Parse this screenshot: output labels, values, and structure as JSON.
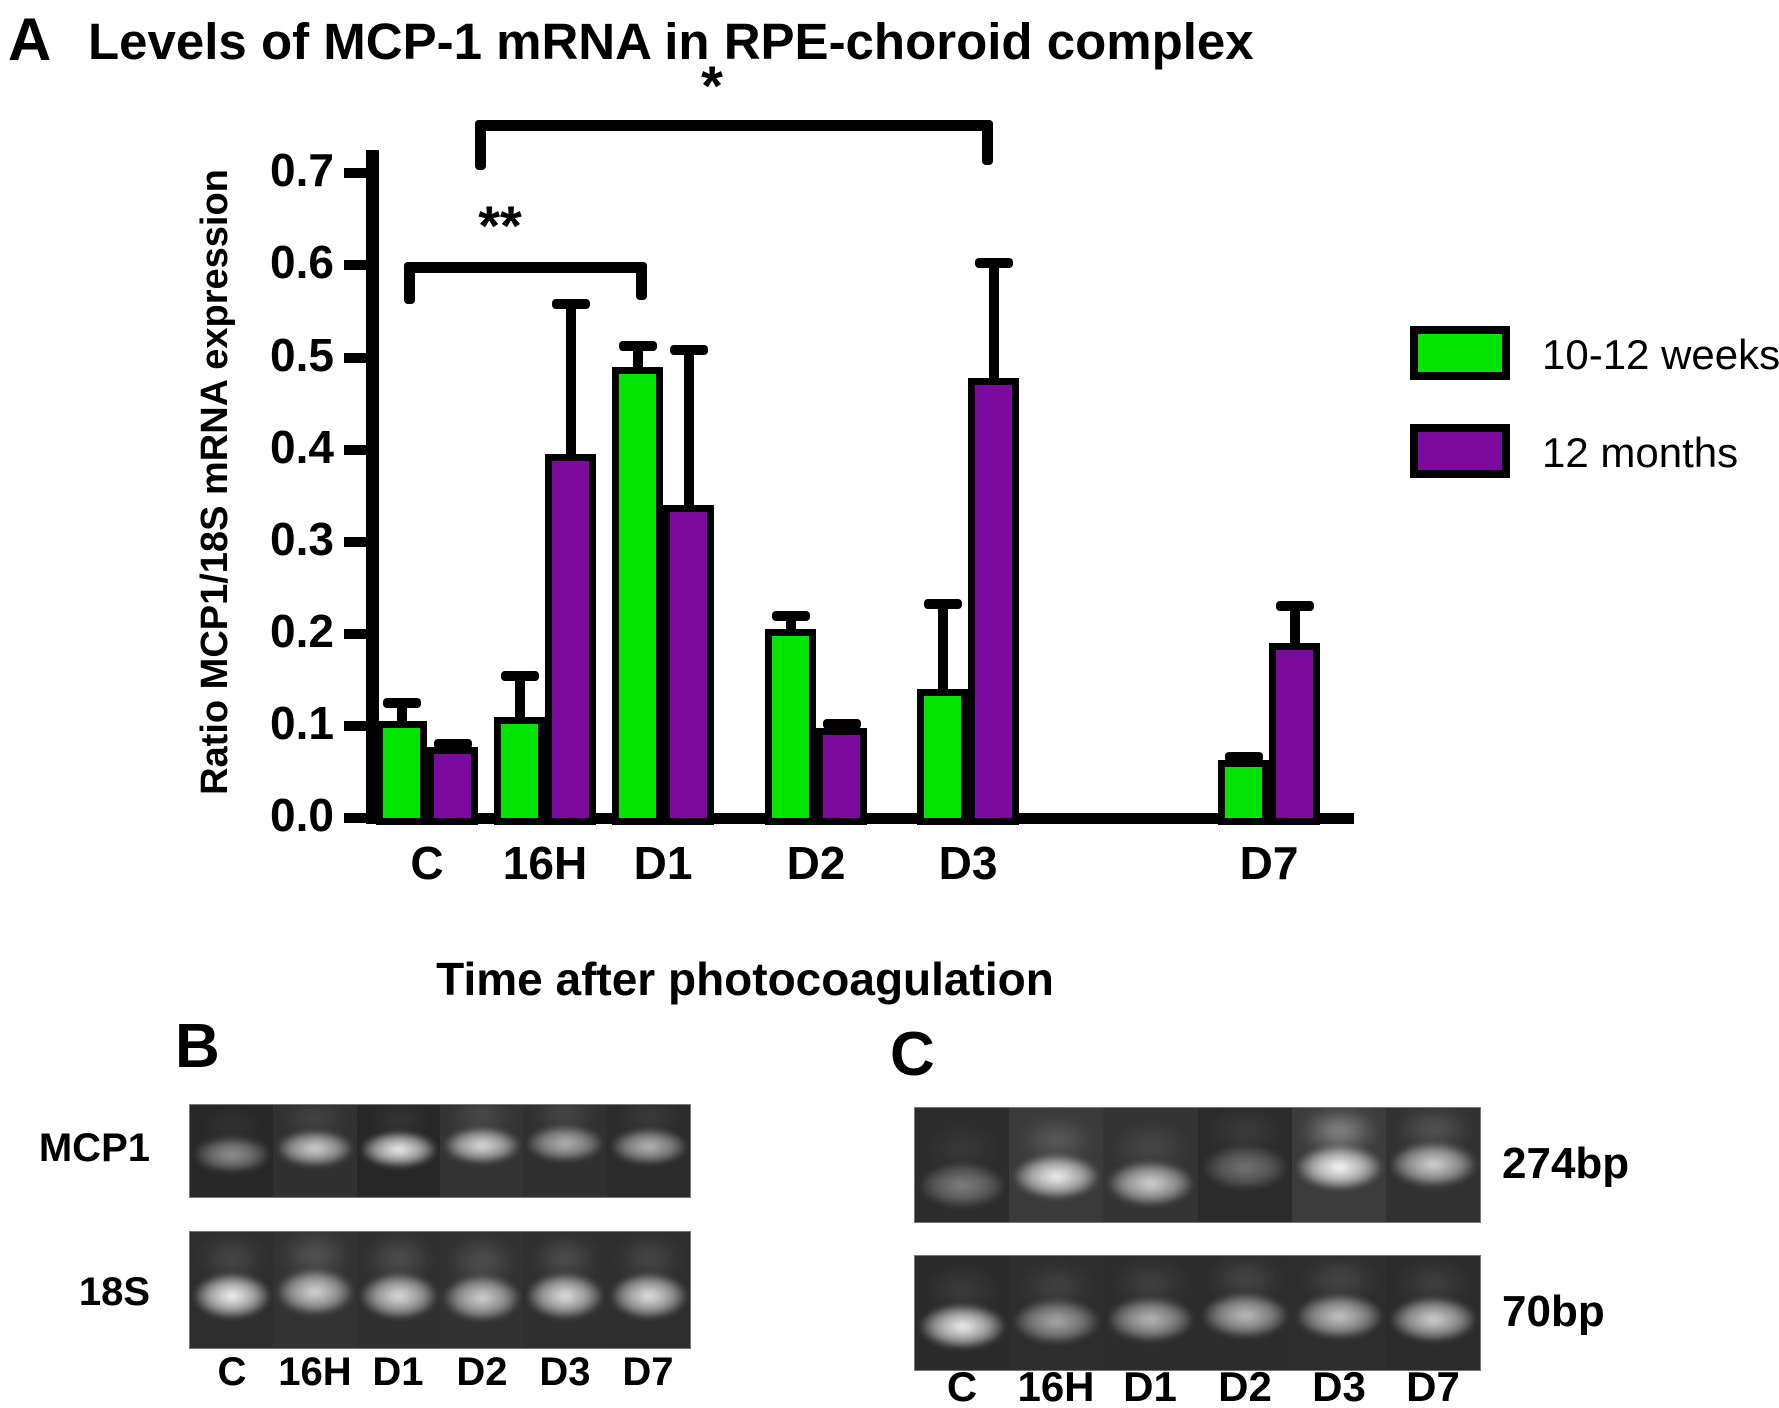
{
  "panel_a": {
    "label": "A"
  },
  "chart_data": {
    "type": "bar",
    "title": "Levels of MCP-1 mRNA in RPE-choroid complex",
    "xlabel": "Time after photocoagulation",
    "ylabel": "Ratio MCP1/18S mRNA expression",
    "categories": [
      "C",
      "16H",
      "D1",
      "D2",
      "D3",
      "D7"
    ],
    "ylim": [
      0.0,
      0.7
    ],
    "ytick_step": 0.1,
    "grid": false,
    "legend_position": "right",
    "series": [
      {
        "name": "10-12 weeks",
        "color": "#00e400",
        "values": [
          0.105,
          0.11,
          0.49,
          0.205,
          0.14,
          0.063
        ],
        "errors": [
          0.022,
          0.046,
          0.025,
          0.016,
          0.095,
          0.005
        ]
      },
      {
        "name": "12 months",
        "color": "#7d0a9f",
        "values": [
          0.077,
          0.395,
          0.34,
          0.098,
          0.478,
          0.19
        ],
        "errors": [
          0.005,
          0.165,
          0.17,
          0.006,
          0.127,
          0.042
        ]
      }
    ],
    "annotations": [
      {
        "label": "*",
        "compares": [
          "16H",
          "D3"
        ]
      },
      {
        "label": "**",
        "compares": [
          "C",
          "D1"
        ]
      }
    ]
  },
  "panel_b": {
    "label": "B",
    "row_labels": [
      "MCP1",
      "18S"
    ],
    "lane_labels": [
      "C",
      "16H",
      "D1",
      "D2",
      "D3",
      "D7"
    ],
    "rows": [
      {
        "name": "MCP1",
        "lane_shades": [
          "#282828",
          "#313131",
          "#272727",
          "#343434",
          "#303030",
          "#2b2b2b"
        ],
        "band_intensity": [
          0.5,
          0.8,
          0.95,
          0.85,
          0.65,
          0.68
        ],
        "band_offset": [
          0.54,
          0.47,
          0.48,
          0.44,
          0.42,
          0.45
        ],
        "smear": [
          0.06,
          0.12,
          0.08,
          0.14,
          0.15,
          0.1
        ]
      },
      {
        "name": "18S",
        "lane_shades": [
          "#2e2e2e",
          "#333333",
          "#303030",
          "#323232",
          "#2f2f2f",
          "#2e2e2e"
        ],
        "band_intensity": [
          0.97,
          0.82,
          0.85,
          0.8,
          0.88,
          0.88
        ],
        "band_offset": [
          0.55,
          0.52,
          0.55,
          0.57,
          0.55,
          0.55
        ],
        "smear": [
          0.15,
          0.2,
          0.18,
          0.18,
          0.18,
          0.15
        ]
      }
    ]
  },
  "panel_c": {
    "label": "C",
    "size_labels": [
      "274bp",
      "70bp"
    ],
    "lane_labels": [
      "C",
      "16H",
      "D1",
      "D2",
      "D3",
      "D7"
    ],
    "rows": [
      {
        "name": "274bp",
        "lane_shades": [
          "#2c2c2c",
          "#3a3a3a",
          "#343434",
          "#2b2b2b",
          "#3c3c3c",
          "#323232"
        ],
        "band_intensity": [
          0.4,
          0.95,
          0.8,
          0.35,
          1.0,
          0.8
        ],
        "band_offset": [
          0.68,
          0.6,
          0.66,
          0.52,
          0.52,
          0.5
        ],
        "smear": [
          0.08,
          0.2,
          0.12,
          0.1,
          0.45,
          0.2
        ]
      },
      {
        "name": "70bp",
        "lane_shades": [
          "#2a2a2a",
          "#2d2d2d",
          "#2c2c2c",
          "#2c2c2c",
          "#2d2d2d",
          "#2b2b2b"
        ],
        "band_intensity": [
          0.95,
          0.6,
          0.68,
          0.7,
          0.75,
          0.8
        ],
        "band_offset": [
          0.62,
          0.58,
          0.56,
          0.52,
          0.53,
          0.56
        ],
        "smear": [
          0.1,
          0.12,
          0.12,
          0.15,
          0.15,
          0.12
        ]
      }
    ]
  }
}
